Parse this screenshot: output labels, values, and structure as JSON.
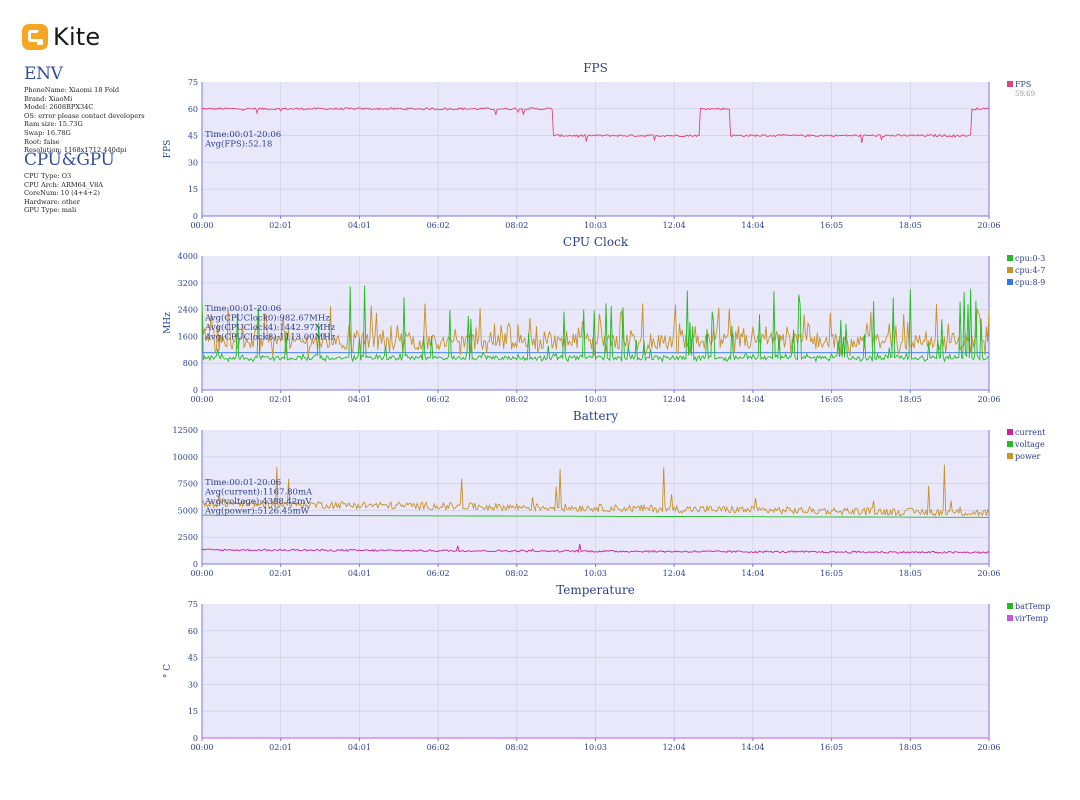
{
  "app": {
    "logo_text": "Kite"
  },
  "env": {
    "heading": "ENV",
    "lines": [
      "PhoneName: Xiaomi 18 Fold",
      "Brand: XiaoMi",
      "Model: 2608BPX34C",
      "OS: error please contact developers",
      "Ram size: 15.73G",
      "Swap: 16.78G",
      "Root: false",
      "Resolution: 1168x1712 440dpi"
    ]
  },
  "cpu_gpu": {
    "heading": "CPU&GPU",
    "lines": [
      "CPU Type: O3",
      "CPU Arch: ARM64_V8A",
      "CoreNum: 10 (4+4+2)",
      "Hardware: other",
      "GPU Type: mali"
    ]
  },
  "colors": {
    "plot_bg": "#e8e8fa",
    "grid": "#ccccdd",
    "axis": "#7878e0",
    "tick_text": "#2d3f8e",
    "fps": "#e0457b",
    "cpu0": "#22bb22",
    "cpu4": "#c8922a",
    "cpu8": "#3377ee",
    "current": "#cc2299",
    "voltage": "#22bb22",
    "power": "#c8922a",
    "batTemp": "#22bb22",
    "virTemp": "#cc55dd"
  },
  "chart_data": [
    {
      "type": "line",
      "title": "FPS",
      "ylabel": "FPS",
      "ylim": [
        0,
        75
      ],
      "yticks": [
        "0",
        "15",
        "30",
        "45",
        "60",
        "75"
      ],
      "xticks": [
        "00:00",
        "02:01",
        "04:01",
        "06:02",
        "08:02",
        "10:03",
        "12:04",
        "14:04",
        "16:05",
        "18:05",
        "20:06"
      ],
      "annotations": [
        "Time:00:01-20:06",
        "Avg(FPS):52.18"
      ],
      "legend": [
        {
          "name": "FPS",
          "value": "59.69",
          "color": "#e0457b"
        }
      ],
      "series": [
        {
          "name": "FPS",
          "color": "#e0457b",
          "segments": [
            {
              "from": 0,
              "to": 8.95,
              "value": 60
            },
            {
              "from": 8.95,
              "to": 12.7,
              "value": 45
            },
            {
              "from": 12.7,
              "to": 13.5,
              "value": 60
            },
            {
              "from": 13.5,
              "to": 19.65,
              "value": 45
            },
            {
              "from": 19.65,
              "to": 20.1,
              "value": 60
            }
          ]
        }
      ]
    },
    {
      "type": "line",
      "title": "CPU Clock",
      "ylabel": "MHz",
      "ylim": [
        0,
        4000
      ],
      "yticks": [
        "0",
        "800",
        "1600",
        "2400",
        "3200",
        "4000"
      ],
      "xticks": [
        "00:00",
        "02:01",
        "04:01",
        "06:02",
        "08:02",
        "10:03",
        "12:04",
        "14:04",
        "16:05",
        "18:05",
        "20:06"
      ],
      "annotations": [
        "Time:00:01-20:06",
        "Avg(CPUClock0):982.67MHz",
        "Avg(CPUClock4):1442.97MHz",
        "Avg(CPUClock8):1113.00MHz"
      ],
      "legend": [
        {
          "name": "cpu:0-3",
          "color": "#22bb22"
        },
        {
          "name": "cpu:4-7",
          "color": "#c8922a"
        },
        {
          "name": "cpu:8-9",
          "color": "#3377ee"
        }
      ],
      "series": [
        {
          "name": "cpu:8-9",
          "color": "#3377ee",
          "base": 1113,
          "noise": 0,
          "spikes": 0
        },
        {
          "name": "cpu:4-7",
          "color": "#c8922a",
          "base": 1400,
          "noise": 500,
          "spikes": 40,
          "spike_max": 2600
        },
        {
          "name": "cpu:0-3",
          "color": "#22bb22",
          "base": 950,
          "noise": 120,
          "spikes": 60,
          "spike_max": 3150
        }
      ]
    },
    {
      "type": "line",
      "title": "Battery",
      "ylabel": "",
      "ylim": [
        0,
        12500
      ],
      "yticks": [
        "0",
        "2500",
        "5000",
        "7500",
        "10000",
        "12500"
      ],
      "xticks": [
        "00:00",
        "02:01",
        "04:01",
        "06:02",
        "08:02",
        "10:03",
        "12:04",
        "14:04",
        "16:05",
        "18:05",
        "20:06"
      ],
      "annotations": [
        "Time:00:01-20:06",
        "Avg(current):1167.80mA",
        "Avg(voltage):4388.42mV",
        "Avg(power):5126.45mW"
      ],
      "legend": [
        {
          "name": "current",
          "color": "#cc2299"
        },
        {
          "name": "voltage",
          "color": "#22bb22"
        },
        {
          "name": "power",
          "color": "#c8922a"
        }
      ],
      "series": [
        {
          "name": "voltage",
          "color": "#22bb22",
          "start": 4550,
          "end": 4350
        },
        {
          "name": "power",
          "color": "#c8922a",
          "base_start": 5600,
          "base_end": 4700,
          "noise": 700,
          "spikes": 12,
          "spike_max": 9600
        },
        {
          "name": "current",
          "color": "#cc2299",
          "base_start": 1300,
          "base_end": 1050,
          "noise": 180,
          "spikes": 6,
          "spike_max": 2000
        }
      ]
    },
    {
      "type": "line",
      "title": "Temperature",
      "ylabel": "° C",
      "ylim": [
        0,
        75
      ],
      "yticks": [
        "0",
        "15",
        "30",
        "45",
        "60",
        "75"
      ],
      "xticks": [
        "00:00",
        "02:01",
        "04:01",
        "06:02",
        "08:02",
        "10:03",
        "12:04",
        "14:04",
        "16:05",
        "18:05",
        "20:06"
      ],
      "annotations": [],
      "legend": [
        {
          "name": "batTemp",
          "color": "#22bb22"
        },
        {
          "name": "virTemp",
          "color": "#cc55dd"
        }
      ],
      "series": [
        {
          "name": "batTemp",
          "color": "#22bb22",
          "value": 0
        },
        {
          "name": "virTemp",
          "color": "#cc55dd",
          "value": 0
        }
      ]
    }
  ]
}
